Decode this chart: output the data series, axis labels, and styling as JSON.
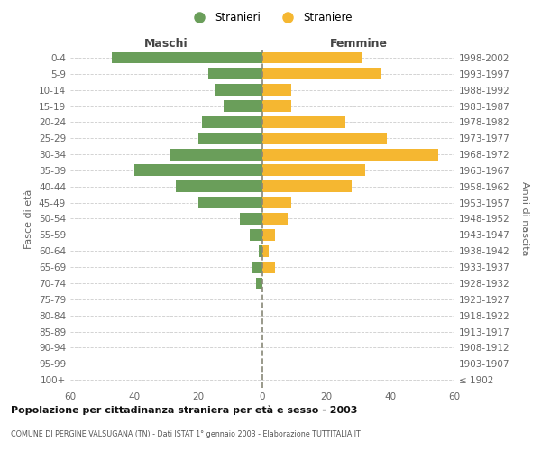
{
  "age_groups": [
    "100+",
    "95-99",
    "90-94",
    "85-89",
    "80-84",
    "75-79",
    "70-74",
    "65-69",
    "60-64",
    "55-59",
    "50-54",
    "45-49",
    "40-44",
    "35-39",
    "30-34",
    "25-29",
    "20-24",
    "15-19",
    "10-14",
    "5-9",
    "0-4"
  ],
  "birth_years": [
    "≤ 1902",
    "1903-1907",
    "1908-1912",
    "1913-1917",
    "1918-1922",
    "1923-1927",
    "1928-1932",
    "1933-1937",
    "1938-1942",
    "1943-1947",
    "1948-1952",
    "1953-1957",
    "1958-1962",
    "1963-1967",
    "1968-1972",
    "1973-1977",
    "1978-1982",
    "1983-1987",
    "1988-1992",
    "1993-1997",
    "1998-2002"
  ],
  "maschi": [
    0,
    0,
    0,
    0,
    0,
    0,
    2,
    3,
    1,
    4,
    7,
    20,
    27,
    40,
    29,
    20,
    19,
    12,
    15,
    17,
    47
  ],
  "femmine": [
    0,
    0,
    0,
    0,
    0,
    0,
    0,
    4,
    2,
    4,
    8,
    9,
    28,
    32,
    55,
    39,
    26,
    9,
    9,
    37,
    31
  ],
  "maschi_color": "#6a9e5a",
  "femmine_color": "#f5b731",
  "title": "Popolazione per cittadinanza straniera per età e sesso - 2003",
  "subtitle": "COMUNE DI PERGINE VALSUGANA (TN) - Dati ISTAT 1° gennaio 2003 - Elaborazione TUTTITALIA.IT",
  "xlabel_left": "Maschi",
  "xlabel_right": "Femmine",
  "ylabel_left": "Fasce di età",
  "ylabel_right": "Anni di nascita",
  "legend_maschi": "Stranieri",
  "legend_femmine": "Straniere",
  "xlim": 60,
  "background_color": "#ffffff",
  "grid_color": "#cccccc"
}
